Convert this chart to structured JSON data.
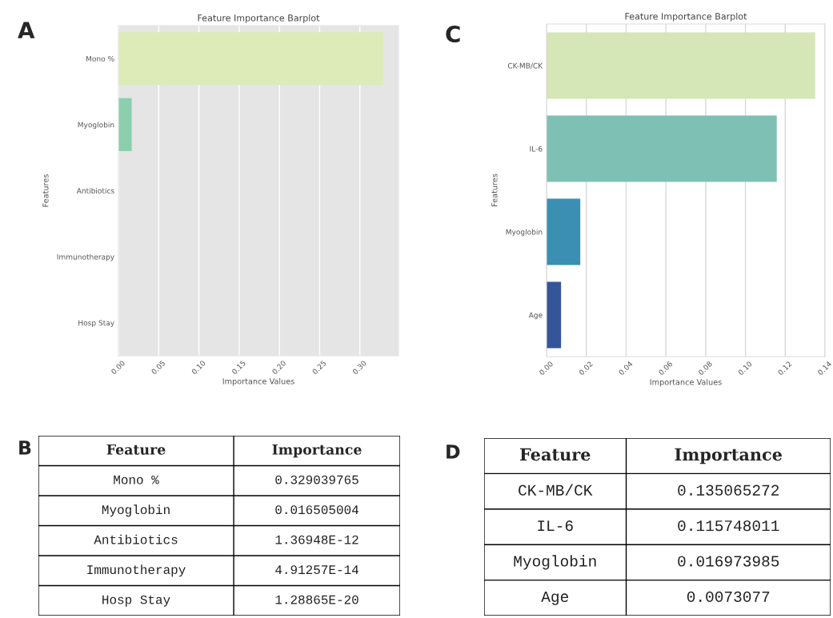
{
  "chart_data": [
    {
      "type": "bar",
      "orientation": "horizontal",
      "title": "Feature Importance Barplot",
      "xlabel": "Importance Values",
      "ylabel": "Features",
      "categories": [
        "Mono %",
        "Myoglobin",
        "Antibiotics",
        "Immunotherapy",
        "Hosp Stay"
      ],
      "values": [
        0.329039765,
        0.016505004,
        1.36948e-12,
        4.91257e-14,
        1.28865e-20
      ],
      "colors": [
        "#dcebb8",
        "#8ccfae",
        "#41b6c4",
        "#2c7fb8",
        "#253494"
      ],
      "xlim": [
        0,
        0.348
      ],
      "xticks": [
        {
          "value": 0,
          "label": "0.00"
        },
        {
          "value": 0.05,
          "label": "0.05"
        },
        {
          "value": 0.1,
          "label": "0.10"
        },
        {
          "value": 0.15,
          "label": "0.15"
        },
        {
          "value": 0.2,
          "label": "0.20"
        },
        {
          "value": 0.25,
          "label": "0.25"
        },
        {
          "value": 0.3,
          "label": "0.30"
        }
      ],
      "grid": "x",
      "annotations": [
        "A"
      ]
    },
    {
      "type": "bar",
      "orientation": "horizontal",
      "title": "Feature Importance Barplot",
      "xlabel": "Importance Values",
      "ylabel": "Features",
      "categories": [
        "CK-MB/CK",
        "IL-6",
        "Myoglobin",
        "Age"
      ],
      "values": [
        0.135065272,
        0.115748011,
        0.016973985,
        0.0073077
      ],
      "colors": [
        "#d5e6b7",
        "#7fc0b5",
        "#3a8fb3",
        "#35559a"
      ],
      "xlim": [
        0,
        0.14
      ],
      "xticks": [
        {
          "value": 0,
          "label": "0.00"
        },
        {
          "value": 0.02,
          "label": "0.02"
        },
        {
          "value": 0.04,
          "label": "0.04"
        },
        {
          "value": 0.06,
          "label": "0.06"
        },
        {
          "value": 0.08,
          "label": "0.08"
        },
        {
          "value": 0.1,
          "label": "0.10"
        },
        {
          "value": 0.12,
          "label": "0.12"
        },
        {
          "value": 0.14,
          "label": "0.14"
        }
      ],
      "grid": "x",
      "annotations": [
        "C"
      ]
    },
    {
      "type": "other",
      "annotations": [
        "B",
        "Feature",
        "Importance",
        "Mono %",
        "0.329039765",
        "Myoglobin",
        "0.016505004",
        "Antibiotics",
        "1.36948E-12",
        "Immunotherapy",
        "4.91257E-14",
        "Hosp Stay",
        "1.28865E-20"
      ]
    },
    {
      "type": "other",
      "annotations": [
        "D",
        "Feature",
        "Importance",
        "CK-MB/CK",
        "0.135065272",
        "IL-6",
        "0.115748011",
        "Myoglobin",
        "0.016973985",
        "Age",
        "0.0073077"
      ]
    }
  ]
}
